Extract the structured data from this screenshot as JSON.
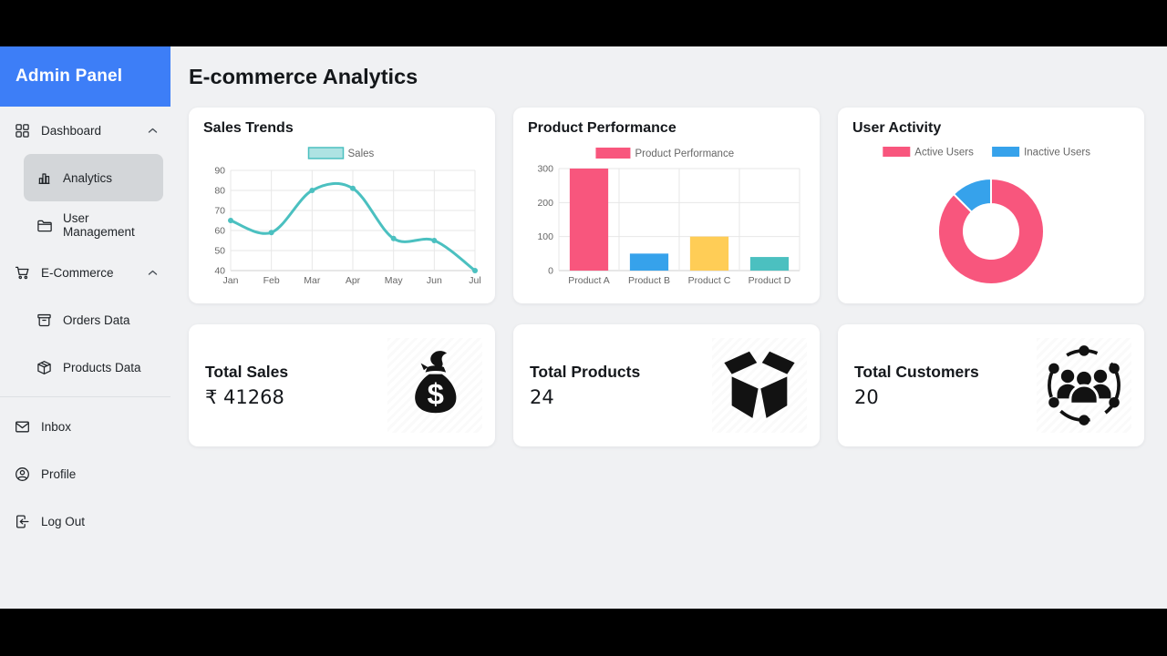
{
  "sidebar": {
    "brand": "Admin Panel",
    "items": [
      {
        "label": "Dashboard"
      },
      {
        "label": "Analytics"
      },
      {
        "label": "User Management"
      },
      {
        "label": "E-Commerce"
      },
      {
        "label": "Orders Data"
      },
      {
        "label": "Products Data"
      },
      {
        "label": "Inbox"
      },
      {
        "label": "Profile"
      },
      {
        "label": "Log Out"
      }
    ]
  },
  "header": {
    "title": "E-commerce Analytics"
  },
  "colors": {
    "brand_blue": "#3d7ef7",
    "page_bg": "#f0f1f3",
    "active_item_bg": "#d3d6d9",
    "teal": "#4bc0c0",
    "pink": "#f8567d",
    "blue": "#36a2eb",
    "yellow": "#ffcd56"
  },
  "chart_data": [
    {
      "type": "line",
      "title": "Sales Trends",
      "x": [
        "Jan",
        "Feb",
        "Mar",
        "Apr",
        "May",
        "Jun",
        "Jul"
      ],
      "series": [
        {
          "name": "Sales",
          "values": [
            65,
            59,
            80,
            81,
            56,
            55,
            40
          ],
          "color": "#4bc0c0"
        }
      ],
      "ylim": [
        40,
        90
      ],
      "ytick_step": 10,
      "grid": true,
      "legend_position": "top"
    },
    {
      "type": "bar",
      "title": "Product Performance",
      "legend": "Product Performance",
      "legend_color": "#f8567d",
      "categories": [
        "Product A",
        "Product B",
        "Product C",
        "Product D"
      ],
      "values": [
        300,
        50,
        100,
        40
      ],
      "colors": [
        "#f8567d",
        "#36a2eb",
        "#ffcd56",
        "#4bc0c0"
      ],
      "ylim": [
        0,
        300
      ],
      "ytick_step": 100,
      "grid": true,
      "legend_position": "top"
    },
    {
      "type": "doughnut",
      "title": "User Activity",
      "labels": [
        "Active Users",
        "Inactive Users"
      ],
      "values": [
        87.5,
        12.5
      ],
      "colors": [
        "#f8567d",
        "#36a2eb"
      ],
      "legend_position": "top"
    }
  ],
  "stats": [
    {
      "label": "Total Sales",
      "value": "₹ 41268"
    },
    {
      "label": "Total Products",
      "value": "24"
    },
    {
      "label": "Total Customers",
      "value": "20"
    }
  ]
}
